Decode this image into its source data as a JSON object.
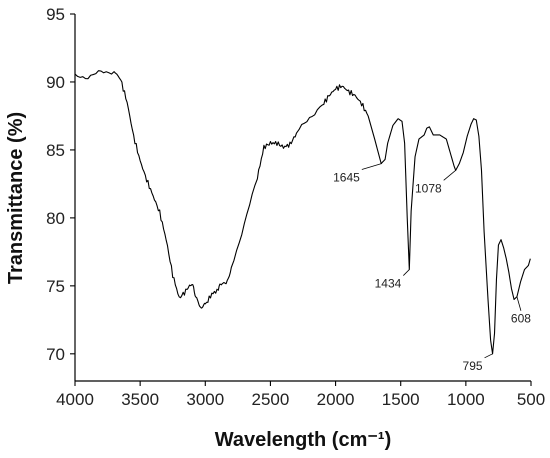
{
  "chart_data": {
    "type": "line",
    "xlabel": "Wavelength (cm⁻¹)",
    "ylabel": "Transmittance (%)",
    "xlim": [
      4000,
      500
    ],
    "ylim": [
      68,
      95
    ],
    "x_ticks": [
      4000,
      3500,
      3000,
      2500,
      2000,
      1500,
      1000,
      500
    ],
    "y_ticks": [
      70,
      75,
      80,
      85,
      90,
      95
    ],
    "grid": false,
    "series": [
      {
        "color": "#000000",
        "points": [
          [
            4000,
            90.4
          ],
          [
            3900,
            90.4
          ],
          [
            3800,
            90.7
          ],
          [
            3700,
            90.8
          ],
          [
            3650,
            90.2
          ],
          [
            3600,
            88.5
          ],
          [
            3550,
            86.0
          ],
          [
            3500,
            84.2
          ],
          [
            3450,
            82.8
          ],
          [
            3400,
            81.6
          ],
          [
            3350,
            80.4
          ],
          [
            3300,
            78.4
          ],
          [
            3250,
            75.8
          ],
          [
            3200,
            74.1
          ],
          [
            3150,
            74.6
          ],
          [
            3120,
            75.1
          ],
          [
            3090,
            74.9
          ],
          [
            3060,
            73.8
          ],
          [
            3030,
            73.4
          ],
          [
            3000,
            73.6
          ],
          [
            2950,
            74.4
          ],
          [
            2900,
            74.7
          ],
          [
            2870,
            75.3
          ],
          [
            2840,
            75.1
          ],
          [
            2800,
            76.4
          ],
          [
            2700,
            79.5
          ],
          [
            2600,
            83.0
          ],
          [
            2550,
            85.2
          ],
          [
            2500,
            85.5
          ],
          [
            2450,
            85.5
          ],
          [
            2400,
            85.2
          ],
          [
            2350,
            85.4
          ],
          [
            2300,
            86.2
          ],
          [
            2200,
            87.4
          ],
          [
            2100,
            88.3
          ],
          [
            2050,
            89.0
          ],
          [
            2000,
            89.5
          ],
          [
            1950,
            89.7
          ],
          [
            1900,
            89.3
          ],
          [
            1850,
            89.0
          ],
          [
            1800,
            88.4
          ],
          [
            1750,
            87.5
          ],
          [
            1700,
            85.8
          ],
          [
            1650,
            84.0
          ],
          [
            1620,
            84.3
          ],
          [
            1600,
            85.5
          ],
          [
            1560,
            86.8
          ],
          [
            1520,
            87.3
          ],
          [
            1490,
            87.1
          ],
          [
            1470,
            85.5
          ],
          [
            1450,
            80.0
          ],
          [
            1434,
            76.2
          ],
          [
            1420,
            80.5
          ],
          [
            1390,
            84.5
          ],
          [
            1360,
            85.8
          ],
          [
            1320,
            86.1
          ],
          [
            1300,
            86.6
          ],
          [
            1280,
            86.7
          ],
          [
            1250,
            86.1
          ],
          [
            1200,
            86.1
          ],
          [
            1150,
            85.8
          ],
          [
            1120,
            84.8
          ],
          [
            1090,
            83.8
          ],
          [
            1078,
            83.5
          ],
          [
            1050,
            84.0
          ],
          [
            1020,
            84.8
          ],
          [
            990,
            86.0
          ],
          [
            960,
            86.9
          ],
          [
            940,
            87.3
          ],
          [
            920,
            87.2
          ],
          [
            900,
            86.0
          ],
          [
            880,
            83.5
          ],
          [
            860,
            79.0
          ],
          [
            830,
            74.0
          ],
          [
            810,
            71.0
          ],
          [
            795,
            70.0
          ],
          [
            780,
            71.5
          ],
          [
            765,
            75.5
          ],
          [
            750,
            78.0
          ],
          [
            730,
            78.4
          ],
          [
            710,
            77.8
          ],
          [
            690,
            77.0
          ],
          [
            670,
            76.0
          ],
          [
            650,
            74.8
          ],
          [
            630,
            74.0
          ],
          [
            608,
            74.2
          ],
          [
            580,
            75.3
          ],
          [
            550,
            76.2
          ],
          [
            520,
            76.5
          ],
          [
            505,
            77.0
          ]
        ]
      }
    ],
    "annotations": [
      {
        "label": "1645",
        "x": 1645,
        "y": 84.0
      },
      {
        "label": "1434",
        "x": 1434,
        "y": 76.2
      },
      {
        "label": "1078",
        "x": 1078,
        "y": 83.5
      },
      {
        "label": "795",
        "x": 795,
        "y": 70.0
      },
      {
        "label": "608",
        "x": 608,
        "y": 74.2
      }
    ]
  }
}
